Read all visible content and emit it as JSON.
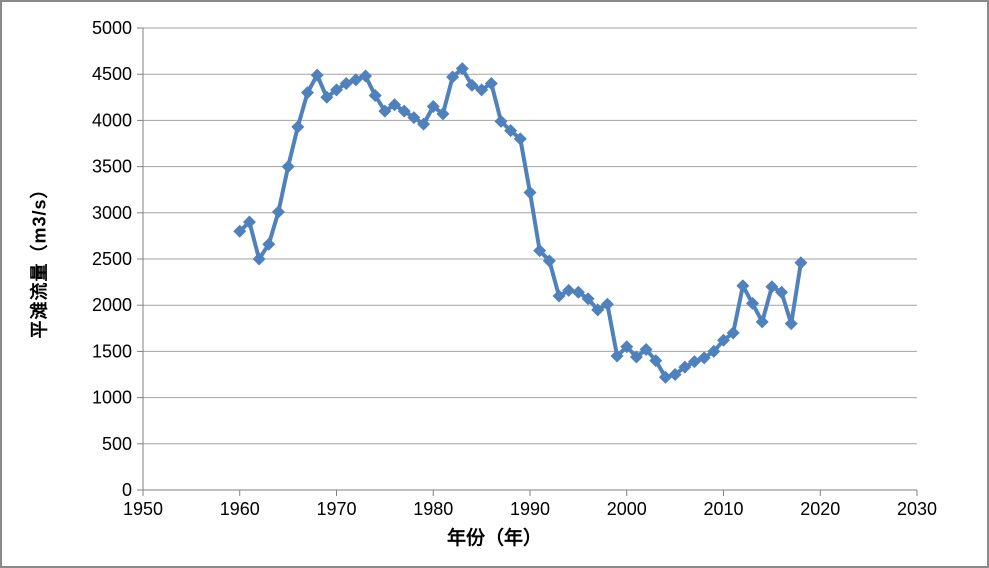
{
  "frame": {
    "background": "#FFFFFF",
    "border_color": "#8A8A8A"
  },
  "chart_data": {
    "type": "line",
    "title": "",
    "xlabel": "年份（年）",
    "ylabel": "平滩流量（m3/s）",
    "series_name": "平滩流量",
    "legend": "none",
    "grid": "horizontal",
    "marker": "diamond",
    "line_color": "#4F81BD",
    "gridline_color": "#A3A3A3",
    "axis_color": "#808080",
    "tick_label_color": "#000000",
    "xlim": [
      1950,
      2030
    ],
    "ylim": [
      0,
      5000
    ],
    "xticks": [
      1950,
      1960,
      1970,
      1980,
      1990,
      2000,
      2010,
      2020,
      2030
    ],
    "yticks": [
      0,
      500,
      1000,
      1500,
      2000,
      2500,
      3000,
      3500,
      4000,
      4500,
      5000
    ],
    "x": [
      1960,
      1961,
      1962,
      1963,
      1964,
      1965,
      1966,
      1967,
      1968,
      1969,
      1970,
      1971,
      1972,
      1973,
      1974,
      1975,
      1976,
      1977,
      1978,
      1979,
      1980,
      1981,
      1982,
      1983,
      1984,
      1985,
      1986,
      1987,
      1988,
      1989,
      1990,
      1991,
      1992,
      1993,
      1994,
      1995,
      1996,
      1997,
      1998,
      1999,
      2000,
      2001,
      2002,
      2003,
      2004,
      2005,
      2006,
      2007,
      2008,
      2009,
      2010,
      2011,
      2012,
      2013,
      2014,
      2015,
      2016,
      2017,
      2018
    ],
    "values": [
      2800,
      2900,
      2500,
      2660,
      3010,
      3500,
      3930,
      4300,
      4490,
      4250,
      4330,
      4400,
      4440,
      4480,
      4270,
      4100,
      4170,
      4100,
      4030,
      3960,
      4150,
      4070,
      4470,
      4560,
      4380,
      4330,
      4400,
      3990,
      3890,
      3800,
      3220,
      2590,
      2480,
      2100,
      2160,
      2140,
      2070,
      1950,
      2010,
      1450,
      1550,
      1440,
      1520,
      1400,
      1220,
      1250,
      1330,
      1390,
      1430,
      1500,
      1620,
      1700,
      2210,
      2020,
      1820,
      2200,
      2140,
      1800,
      2460
    ]
  }
}
